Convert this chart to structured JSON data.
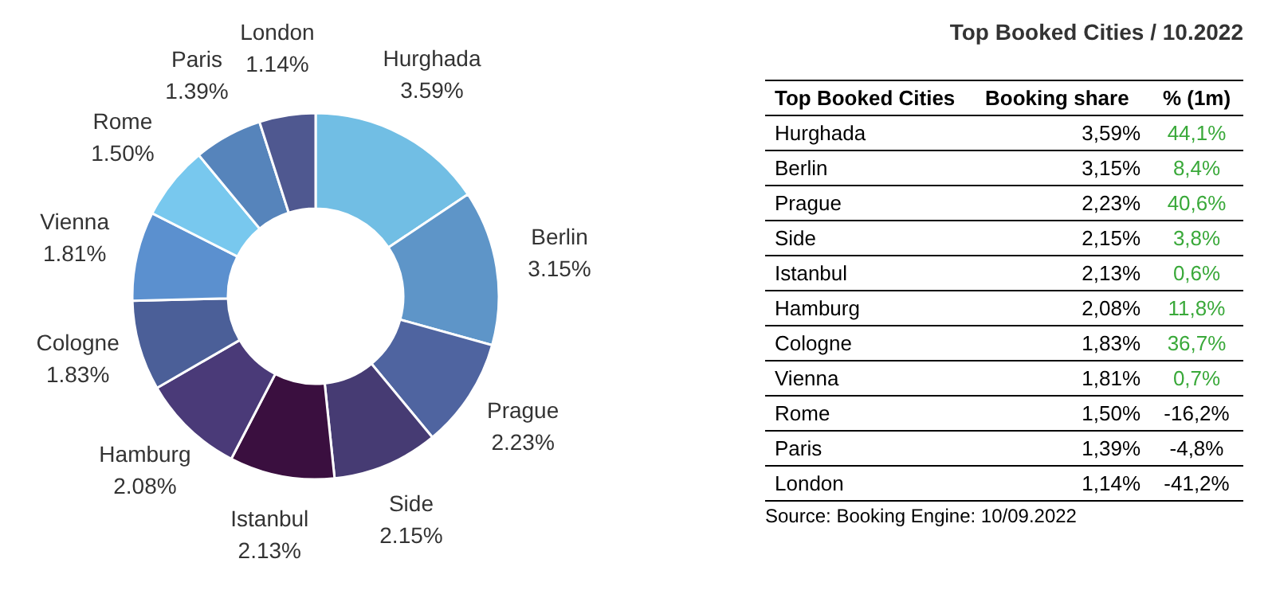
{
  "chart_data": [
    {
      "type": "donut",
      "categories": [
        "Hurghada",
        "Berlin",
        "Prague",
        "Side",
        "Istanbul",
        "Hamburg",
        "Cologne",
        "Vienna",
        "Rome",
        "Paris",
        "London"
      ],
      "values": [
        3.59,
        3.15,
        2.23,
        2.15,
        2.13,
        2.08,
        1.83,
        1.81,
        1.5,
        1.39,
        1.14
      ],
      "value_labels": [
        "3.59%",
        "3.15%",
        "2.23%",
        "2.15%",
        "2.13%",
        "2.08%",
        "1.83%",
        "1.81%",
        "1.50%",
        "1.39%",
        "1.14%"
      ],
      "colors": [
        "#71bee4",
        "#5e95c8",
        "#4f64a0",
        "#463b73",
        "#3a0f3f",
        "#4a3a78",
        "#4b5f98",
        "#5b90cf",
        "#78c8ee",
        "#5684bb",
        "#4f5890"
      ]
    },
    {
      "type": "other",
      "title": "Top Booked Cities / 10.2022",
      "xlabel": "Top Booked Cities",
      "categories": [
        "Hurghada",
        "Berlin",
        "Prague",
        "Side",
        "Istanbul",
        "Hamburg",
        "Cologne",
        "Vienna",
        "Rome",
        "Paris",
        "London"
      ],
      "series": [
        {
          "name": "Booking share",
          "color": "#000000",
          "values": [
            3.59,
            3.15,
            2.23,
            2.15,
            2.13,
            2.08,
            1.83,
            1.81,
            1.5,
            1.39,
            1.14
          ],
          "value_labels": [
            "3,59%",
            "3,15%",
            "2,23%",
            "2,15%",
            "2,13%",
            "2,08%",
            "1,83%",
            "1,81%",
            "1,50%",
            "1,39%",
            "1,14%"
          ]
        },
        {
          "name": "% (1m)",
          "values": [
            44.1,
            8.4,
            40.6,
            3.8,
            0.6,
            11.8,
            36.7,
            0.7,
            -16.2,
            -4.8,
            -41.2
          ],
          "value_labels": [
            "44,1%",
            "8,4%",
            "40,6%",
            "3,8%",
            "0,6%",
            "11,8%",
            "36,7%",
            "0,7%",
            "-16,2%",
            "-4,8%",
            "-41,2%"
          ],
          "colors": [
            "#3aa93a",
            "#3aa93a",
            "#3aa93a",
            "#3aa93a",
            "#3aa93a",
            "#3aa93a",
            "#3aa93a",
            "#3aa93a",
            "#000000",
            "#000000",
            "#000000"
          ]
        }
      ],
      "annotations": [
        "Source: Booking Engine: 10/09.2022"
      ]
    }
  ]
}
